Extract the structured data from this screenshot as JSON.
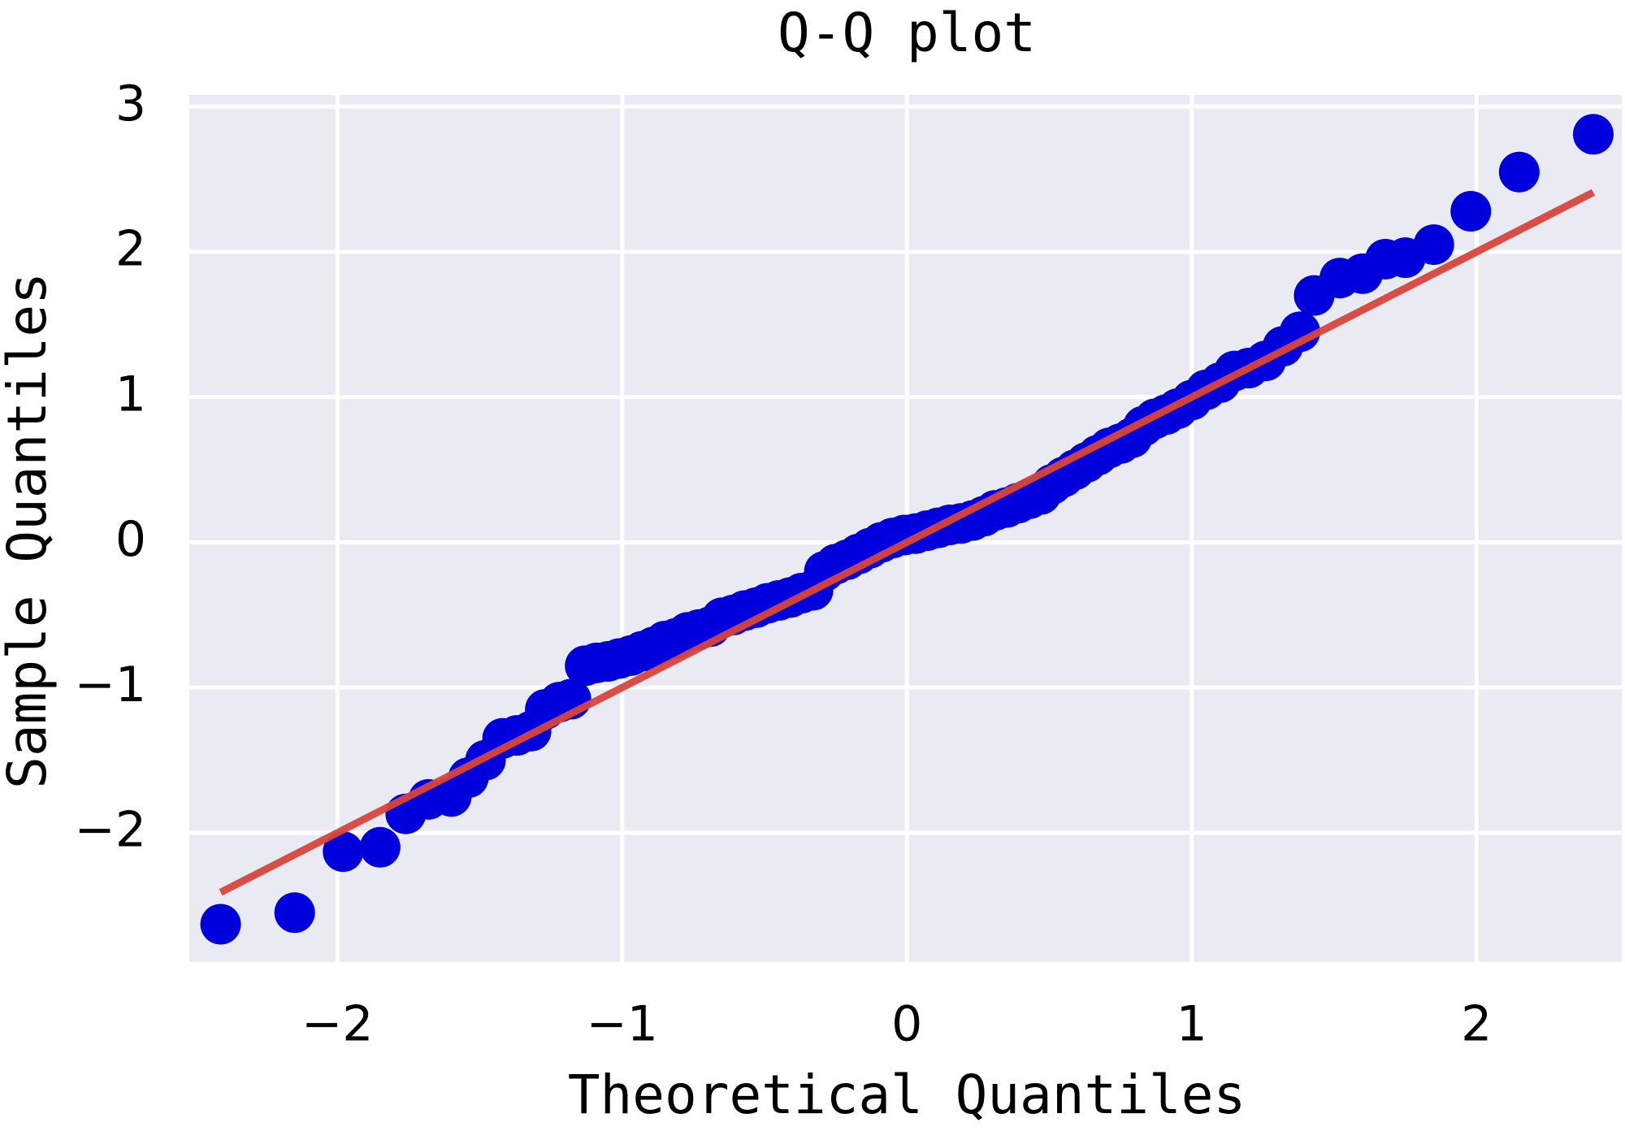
{
  "chart_data": {
    "type": "scatter",
    "title": "Q-Q plot",
    "x_label": "Theoretical Quantiles",
    "y_label": "Sample Quantiles",
    "xlim": [
      -2.52,
      2.51
    ],
    "ylim": [
      -2.89,
      3.08
    ],
    "xticks": [
      {
        "value": -2,
        "label": "−2"
      },
      {
        "value": -1,
        "label": "−1"
      },
      0,
      1,
      2
    ],
    "yticks": [
      {
        "value": -2,
        "label": "−2"
      },
      {
        "value": -1,
        "label": "−1"
      },
      0,
      1,
      2,
      3
    ],
    "grid": true,
    "background": "#eaeaf2",
    "x": [
      -2.41,
      -2.15,
      -1.98,
      -1.85,
      -1.76,
      -1.68,
      -1.6,
      -1.54,
      -1.48,
      -1.42,
      -1.37,
      -1.32,
      -1.27,
      -1.22,
      -1.18,
      -1.13,
      -1.09,
      -1.05,
      -1.01,
      -0.97,
      -0.93,
      -0.89,
      -0.85,
      -0.81,
      -0.77,
      -0.73,
      -0.69,
      -0.65,
      -0.61,
      -0.57,
      -0.53,
      -0.49,
      -0.45,
      -0.41,
      -0.37,
      -0.33,
      -0.29,
      -0.25,
      -0.21,
      -0.17,
      -0.13,
      -0.09,
      -0.05,
      -0.01,
      0.03,
      0.07,
      0.11,
      0.15,
      0.19,
      0.23,
      0.27,
      0.31,
      0.35,
      0.39,
      0.43,
      0.47,
      0.51,
      0.55,
      0.59,
      0.63,
      0.67,
      0.71,
      0.75,
      0.79,
      0.83,
      0.87,
      0.91,
      0.95,
      1.0,
      1.05,
      1.1,
      1.15,
      1.2,
      1.26,
      1.32,
      1.38,
      1.43,
      1.52,
      1.6,
      1.68,
      1.75,
      1.85,
      1.98,
      2.15,
      2.41
    ],
    "series": [
      {
        "color": "#0000dd",
        "values": [
          -2.63,
          -2.55,
          -2.13,
          -2.1,
          -1.87,
          -1.77,
          -1.75,
          -1.62,
          -1.5,
          -1.35,
          -1.33,
          -1.3,
          -1.15,
          -1.1,
          -1.08,
          -0.85,
          -0.83,
          -0.82,
          -0.8,
          -0.78,
          -0.75,
          -0.72,
          -0.68,
          -0.66,
          -0.62,
          -0.6,
          -0.58,
          -0.52,
          -0.5,
          -0.47,
          -0.45,
          -0.42,
          -0.4,
          -0.38,
          -0.35,
          -0.33,
          -0.2,
          -0.15,
          -0.12,
          -0.08,
          -0.04,
          0.0,
          0.03,
          0.05,
          0.06,
          0.08,
          0.1,
          0.12,
          0.13,
          0.15,
          0.18,
          0.22,
          0.24,
          0.27,
          0.3,
          0.33,
          0.4,
          0.45,
          0.5,
          0.55,
          0.6,
          0.65,
          0.68,
          0.72,
          0.8,
          0.85,
          0.88,
          0.92,
          0.98,
          1.05,
          1.1,
          1.18,
          1.2,
          1.25,
          1.35,
          1.45,
          1.7,
          1.82,
          1.85,
          1.95,
          1.96,
          2.05,
          2.28,
          2.55,
          2.81
        ]
      }
    ],
    "reference_line": {
      "color": "#d9443a",
      "x": [
        -2.41,
        2.41
      ],
      "y": [
        -2.41,
        2.41
      ]
    }
  }
}
